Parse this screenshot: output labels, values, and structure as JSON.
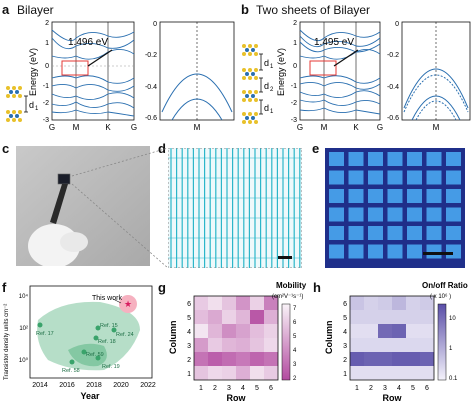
{
  "panels": {
    "a": {
      "letter": "a",
      "title": "Bilayer",
      "gap": "1.496 eV",
      "ylabel": "Energy (eV)",
      "ticks_left": [
        "2",
        "1",
        "0",
        "-1",
        "-2",
        "-3"
      ],
      "ticks_x": [
        "G",
        "M",
        "K",
        "G"
      ],
      "ticks_right": [
        "0",
        "-0.2",
        "-0.4",
        "-0.6"
      ],
      "kpoint": "M",
      "layer_label": "d",
      "layer_sub": "1"
    },
    "b": {
      "letter": "b",
      "title": "Two sheets of Bilayer",
      "gap": "1.495 eV",
      "ylabel": "Energy (eV)",
      "ticks_left": [
        "2",
        "1",
        "0",
        "-1",
        "-2",
        "-3"
      ],
      "ticks_x": [
        "G",
        "M",
        "K",
        "G"
      ],
      "ticks_right": [
        "0",
        "-0.2",
        "-0.4",
        "-0.6"
      ],
      "kpoint": "M",
      "layer_labels": [
        "d",
        "d",
        "d"
      ],
      "layer_subs": [
        "1",
        "2",
        "1"
      ]
    },
    "c": {
      "letter": "c"
    },
    "d": {
      "letter": "d"
    },
    "e": {
      "letter": "e"
    },
    "f": {
      "letter": "f",
      "ylabel": "Transistor density units cm⁻²",
      "xlabel": "Year",
      "xticks": [
        "2014",
        "2016",
        "2018",
        "2020",
        "2022"
      ],
      "yticks": [
        "10⁴",
        "10²",
        "10⁰"
      ],
      "this_work": "This work",
      "refs": [
        "Ref. 17",
        "Ref. 15",
        "Ref. 24",
        "Ref. 18",
        "Ref. 59",
        "Ref. 58",
        "Ref. 19"
      ]
    },
    "g": {
      "letter": "g",
      "legend_title": "Mobility",
      "legend_unit": "(cm²V⁻¹s⁻¹)",
      "legend_ticks": [
        "7",
        "6",
        "5",
        "4",
        "3",
        "2"
      ],
      "xlabel": "Row",
      "ylabel": "Column",
      "xticks": [
        "1",
        "2",
        "3",
        "4",
        "5",
        "6"
      ],
      "yticks": [
        "6",
        "5",
        "4",
        "3",
        "2",
        "1"
      ]
    },
    "h": {
      "letter": "h",
      "legend_title": "On/off Ratio",
      "legend_unit": "( x 10⁶ )",
      "legend_ticks": [
        "10",
        "1",
        "0.1"
      ],
      "xlabel": "Row",
      "ylabel": "Column",
      "xticks": [
        "1",
        "2",
        "3",
        "4",
        "5",
        "6"
      ],
      "yticks": [
        "6",
        "5",
        "4",
        "3",
        "2",
        "1"
      ]
    }
  },
  "colors": {
    "band": "#2a6fb0",
    "highlight": "#e53935",
    "heat_g": "#b34aa0",
    "heat_h": "#5a4fa8",
    "grid_d": "#2bb6c9",
    "grid_e": "#3a7ad9"
  },
  "heat_g": [
    [
      3.2,
      2.6,
      3.4,
      4.8,
      3.0,
      5.4
    ],
    [
      3.6,
      4.2,
      3.0,
      3.8,
      6.6,
      4.0
    ],
    [
      2.4,
      3.8,
      5.0,
      4.4,
      3.6,
      3.0
    ],
    [
      4.6,
      3.2,
      3.8,
      4.0,
      3.4,
      2.8
    ],
    [
      5.8,
      6.4,
      6.0,
      5.6,
      6.2,
      5.8
    ],
    [
      3.4,
      2.8,
      3.0,
      4.0,
      2.6,
      3.2
    ]
  ],
  "heat_h": [
    [
      1.4,
      1.0,
      1.2,
      1.8,
      1.0,
      1.2
    ],
    [
      1.0,
      1.0,
      1.0,
      1.0,
      1.0,
      1.0
    ],
    [
      0.6,
      0.6,
      4.2,
      4.4,
      0.6,
      0.6
    ],
    [
      0.8,
      0.8,
      0.8,
      0.8,
      0.8,
      0.8
    ],
    [
      4.6,
      4.4,
      4.4,
      4.6,
      4.6,
      4.4
    ],
    [
      0.6,
      0.6,
      0.6,
      0.6,
      0.6,
      0.6
    ]
  ]
}
